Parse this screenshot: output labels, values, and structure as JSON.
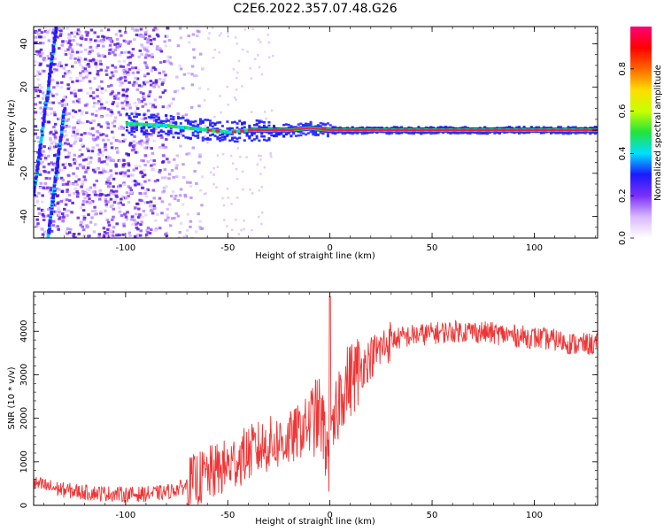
{
  "title": "C2E6.2022.357.07.48.G26",
  "colors": {
    "snr_line": "#ef3535",
    "doppler_track": "#e8204c",
    "scatter": "#7b2ff7",
    "colorbar": [
      "#ffffff",
      "#d9b8ff",
      "#7b2ff7",
      "#1a1aff",
      "#00e0ff",
      "#22e33c",
      "#c8ff00",
      "#ffdd00",
      "#ff6600",
      "#ff0000",
      "#ff0077"
    ]
  },
  "chart_data": [
    {
      "type": "heatmap",
      "xlabel": "Height of straight line (km)",
      "ylabel": "Frequency (Hz)",
      "xlim": [
        -145,
        131
      ],
      "ylim": [
        -50,
        48
      ],
      "xticks": [
        -100,
        -50,
        0,
        50,
        100
      ],
      "yticks": [
        -40,
        -20,
        0,
        20,
        40
      ],
      "colorbar": {
        "label": "Normalized spectral amplitude",
        "range": [
          0.0,
          1.0
        ],
        "ticks": [
          "0.0",
          "0.2",
          "0.4",
          "0.6",
          "0.8"
        ]
      },
      "doppler_track": {
        "x": [
          -100,
          -80,
          -60,
          -50,
          -40,
          -20,
          -10,
          0,
          50,
          100,
          131
        ],
        "y": [
          3,
          2,
          0,
          -1,
          0,
          0,
          1,
          0,
          0,
          0,
          0
        ]
      },
      "streak_lines": [
        {
          "x": [
            -145,
            -134
          ],
          "y": [
            -30,
            48
          ]
        },
        {
          "x": [
            -138,
            -130
          ],
          "y": [
            -50,
            10
          ]
        }
      ]
    },
    {
      "type": "line",
      "xlabel": "Height of straight line (km)",
      "ylabel": "SNR (10 * v/v)",
      "xlim": [
        -145,
        131
      ],
      "ylim": [
        0,
        4900
      ],
      "xticks": [
        -100,
        -50,
        0,
        50,
        100
      ],
      "yticks": [
        0,
        1000,
        2000,
        3000,
        4000
      ],
      "series": [
        {
          "x": [
            -145,
            -130,
            -120,
            -100,
            -90,
            -80,
            -70,
            -60,
            -50,
            -40,
            -30,
            -20,
            -10,
            -5,
            0,
            5,
            10,
            20,
            30,
            40,
            50,
            60,
            70,
            80,
            90,
            100,
            110,
            120,
            131
          ],
          "values": [
            500,
            350,
            300,
            250,
            260,
            300,
            450,
            700,
            900,
            1200,
            1400,
            1500,
            1900,
            2100,
            1000,
            2600,
            2900,
            3400,
            3800,
            3900,
            3950,
            4000,
            4000,
            3950,
            3900,
            3850,
            3800,
            3700,
            3700
          ]
        }
      ]
    }
  ]
}
